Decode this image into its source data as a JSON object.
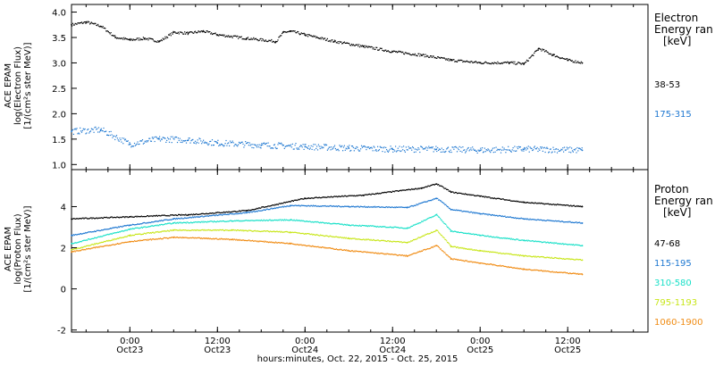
{
  "colors": {
    "black": "#000000",
    "blue": "#1f78d1",
    "cyan": "#19e0c8",
    "yellow": "#c8e619",
    "orange": "#f08c14"
  },
  "xlabel": "hours:minutes, Oct. 22, 2015 - Oct. 25, 2015",
  "x_ticks": [
    {
      "t": "0:00",
      "d": "Oct23"
    },
    {
      "t": "12:00",
      "d": "Oct23"
    },
    {
      "t": "0:00",
      "d": "Oct24"
    },
    {
      "t": "12:00",
      "d": "Oct24"
    },
    {
      "t": "0:00",
      "d": "Oct25"
    },
    {
      "t": "12:00",
      "d": "Oct25"
    }
  ],
  "panels": {
    "electron": {
      "ylabel": [
        "ACE EPAM",
        "log(Electron Flux)",
        "[1/(cm²s ster MeV)]"
      ],
      "legend_title": [
        "Electron",
        "Energy ran",
        "[keV]"
      ],
      "channels": [
        "38-53",
        "175-315"
      ]
    },
    "proton": {
      "ylabel": [
        "ACE EPAM",
        "log(Proton Flux)",
        "[1/(cm²s ster MeV)]"
      ],
      "legend_title": [
        "Proton",
        "Energy ran",
        "[keV]"
      ],
      "channels": [
        "47-68",
        "115-195",
        "310-580",
        "795-1193",
        "1060-1900"
      ]
    }
  },
  "chart_data": [
    {
      "type": "scatter",
      "title": "",
      "xlabel": "hours:minutes, Oct. 22, 2015 - Oct. 25, 2015",
      "ylabel": "ACE EPAM log(Electron Flux) [1/(cm²s ster MeV)]",
      "xlim": [
        "2015-10-22T16:00",
        "2015-10-25T23:00"
      ],
      "ylim": [
        0.9,
        4.15
      ],
      "yticks": [
        1.0,
        1.5,
        2.0,
        2.5,
        3.0,
        3.5,
        4.0
      ],
      "series": [
        {
          "name": "38-53",
          "color": "#000000",
          "points": [
            [
              "2015-10-22T16:00",
              3.75
            ],
            [
              "2015-10-22T18:00",
              3.8
            ],
            [
              "2015-10-22T20:00",
              3.72
            ],
            [
              "2015-10-22T22:00",
              3.5
            ],
            [
              "2015-10-23T00:00",
              3.45
            ],
            [
              "2015-10-23T02:00",
              3.48
            ],
            [
              "2015-10-23T04:00",
              3.42
            ],
            [
              "2015-10-23T06:00",
              3.6
            ],
            [
              "2015-10-23T08:00",
              3.58
            ],
            [
              "2015-10-23T10:00",
              3.62
            ],
            [
              "2015-10-23T12:00",
              3.55
            ],
            [
              "2015-10-23T16:00",
              3.48
            ],
            [
              "2015-10-23T20:00",
              3.42
            ],
            [
              "2015-10-23T21:00",
              3.6
            ],
            [
              "2015-10-23T22:00",
              3.62
            ],
            [
              "2015-10-24T00:00",
              3.55
            ],
            [
              "2015-10-24T04:00",
              3.42
            ],
            [
              "2015-10-24T08:00",
              3.32
            ],
            [
              "2015-10-24T12:00",
              3.22
            ],
            [
              "2015-10-24T16:00",
              3.15
            ],
            [
              "2015-10-24T20:00",
              3.05
            ],
            [
              "2015-10-25T00:00",
              3.0
            ],
            [
              "2015-10-25T04:00",
              3.0
            ],
            [
              "2015-10-25T06:00",
              2.98
            ],
            [
              "2015-10-25T08:00",
              3.28
            ],
            [
              "2015-10-25T10:00",
              3.15
            ],
            [
              "2015-10-25T12:00",
              3.05
            ],
            [
              "2015-10-25T14:00",
              3.0
            ]
          ]
        },
        {
          "name": "175-315",
          "color": "#1f78d1",
          "points": [
            [
              "2015-10-22T16:00",
              1.65
            ],
            [
              "2015-10-22T20:00",
              1.68
            ],
            [
              "2015-10-23T00:00",
              1.4
            ],
            [
              "2015-10-23T04:00",
              1.5
            ],
            [
              "2015-10-23T08:00",
              1.48
            ],
            [
              "2015-10-23T12:00",
              1.42
            ],
            [
              "2015-10-23T18:00",
              1.38
            ],
            [
              "2015-10-24T00:00",
              1.35
            ],
            [
              "2015-10-24T06:00",
              1.32
            ],
            [
              "2015-10-24T12:00",
              1.3
            ],
            [
              "2015-10-24T18:00",
              1.3
            ],
            [
              "2015-10-25T00:00",
              1.28
            ],
            [
              "2015-10-25T06:00",
              1.3
            ],
            [
              "2015-10-25T14:00",
              1.28
            ]
          ]
        }
      ]
    },
    {
      "type": "scatter",
      "title": "",
      "xlabel": "hours:minutes, Oct. 22, 2015 - Oct. 25, 2015",
      "ylabel": "ACE EPAM log(Proton Flux) [1/(cm²s ster MeV)]",
      "xlim": [
        "2015-10-22T16:00",
        "2015-10-25T23:00"
      ],
      "ylim": [
        -2.1,
        5.8
      ],
      "yticks": [
        -2,
        0,
        2,
        4
      ],
      "series": [
        {
          "name": "47-68",
          "color": "#000000",
          "points": [
            [
              "2015-10-22T16:00",
              3.4
            ],
            [
              "2015-10-23T00:00",
              3.5
            ],
            [
              "2015-10-23T08:00",
              3.6
            ],
            [
              "2015-10-23T16:00",
              3.8
            ],
            [
              "2015-10-24T00:00",
              4.4
            ],
            [
              "2015-10-24T08:00",
              4.55
            ],
            [
              "2015-10-24T16:00",
              4.9
            ],
            [
              "2015-10-24T18:00",
              5.1
            ],
            [
              "2015-10-24T20:00",
              4.7
            ],
            [
              "2015-10-25T00:00",
              4.5
            ],
            [
              "2015-10-25T06:00",
              4.2
            ],
            [
              "2015-10-25T14:00",
              4.0
            ]
          ]
        },
        {
          "name": "115-195",
          "color": "#1f78d1",
          "points": [
            [
              "2015-10-22T16:00",
              2.6
            ],
            [
              "2015-10-23T00:00",
              3.1
            ],
            [
              "2015-10-23T06:00",
              3.4
            ],
            [
              "2015-10-23T16:00",
              3.7
            ],
            [
              "2015-10-23T22:00",
              4.05
            ],
            [
              "2015-10-24T06:00",
              4.0
            ],
            [
              "2015-10-24T14:00",
              3.95
            ],
            [
              "2015-10-24T18:00",
              4.4
            ],
            [
              "2015-10-24T20:00",
              3.85
            ],
            [
              "2015-10-25T00:00",
              3.65
            ],
            [
              "2015-10-25T06:00",
              3.4
            ],
            [
              "2015-10-25T14:00",
              3.2
            ]
          ]
        },
        {
          "name": "310-580",
          "color": "#19e0c8",
          "points": [
            [
              "2015-10-22T16:00",
              2.2
            ],
            [
              "2015-10-23T00:00",
              2.9
            ],
            [
              "2015-10-23T06:00",
              3.2
            ],
            [
              "2015-10-23T14:00",
              3.3
            ],
            [
              "2015-10-23T22:00",
              3.35
            ],
            [
              "2015-10-24T06:00",
              3.1
            ],
            [
              "2015-10-24T14:00",
              2.95
            ],
            [
              "2015-10-24T18:00",
              3.6
            ],
            [
              "2015-10-24T20:00",
              2.8
            ],
            [
              "2015-10-25T00:00",
              2.6
            ],
            [
              "2015-10-25T06:00",
              2.35
            ],
            [
              "2015-10-25T14:00",
              2.1
            ]
          ]
        },
        {
          "name": "795-1193",
          "color": "#c8e619",
          "points": [
            [
              "2015-10-22T16:00",
              1.9
            ],
            [
              "2015-10-23T00:00",
              2.6
            ],
            [
              "2015-10-23T06:00",
              2.85
            ],
            [
              "2015-10-23T14:00",
              2.85
            ],
            [
              "2015-10-23T22:00",
              2.75
            ],
            [
              "2015-10-24T06:00",
              2.45
            ],
            [
              "2015-10-24T14:00",
              2.25
            ],
            [
              "2015-10-24T18:00",
              2.85
            ],
            [
              "2015-10-24T20:00",
              2.05
            ],
            [
              "2015-10-25T00:00",
              1.85
            ],
            [
              "2015-10-25T06:00",
              1.6
            ],
            [
              "2015-10-25T14:00",
              1.4
            ]
          ]
        },
        {
          "name": "1060-1900",
          "color": "#f08c14",
          "points": [
            [
              "2015-10-22T16:00",
              1.8
            ],
            [
              "2015-10-23T00:00",
              2.3
            ],
            [
              "2015-10-23T06:00",
              2.5
            ],
            [
              "2015-10-23T14:00",
              2.4
            ],
            [
              "2015-10-23T22:00",
              2.2
            ],
            [
              "2015-10-24T06:00",
              1.85
            ],
            [
              "2015-10-24T14:00",
              1.6
            ],
            [
              "2015-10-24T18:00",
              2.1
            ],
            [
              "2015-10-24T20:00",
              1.45
            ],
            [
              "2015-10-25T00:00",
              1.25
            ],
            [
              "2015-10-25T06:00",
              0.95
            ],
            [
              "2015-10-25T14:00",
              0.7
            ]
          ]
        }
      ]
    }
  ]
}
